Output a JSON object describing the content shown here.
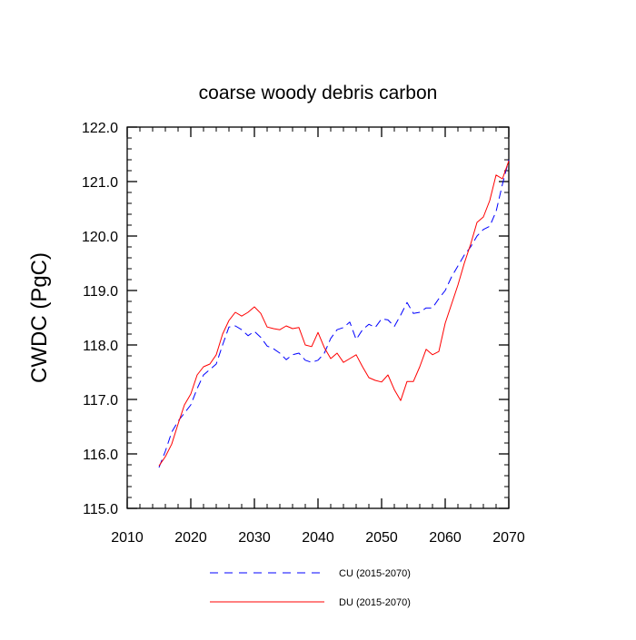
{
  "chart_data": {
    "type": "line",
    "title": "coarse woody debris carbon",
    "xlabel": "",
    "ylabel": "CWDC  (PgC)",
    "xlim": [
      2010,
      2070
    ],
    "ylim": [
      115.0,
      122.0
    ],
    "xticks": [
      "2010",
      "2020",
      "2030",
      "2040",
      "2050",
      "2060",
      "2070"
    ],
    "yticks": [
      "115.0",
      "116.0",
      "117.0",
      "118.0",
      "119.0",
      "120.0",
      "121.0",
      "122.0"
    ],
    "legend_position": "bottom",
    "grid": false,
    "series": [
      {
        "name": "CU (2015-2070)",
        "color": "#0000ff",
        "style": "dashed",
        "x": [
          2015,
          2016,
          2017,
          2018,
          2019,
          2020,
          2021,
          2022,
          2023,
          2024,
          2025,
          2026,
          2027,
          2028,
          2029,
          2030,
          2031,
          2032,
          2033,
          2034,
          2035,
          2036,
          2037,
          2038,
          2039,
          2040,
          2041,
          2042,
          2043,
          2044,
          2045,
          2046,
          2047,
          2048,
          2049,
          2050,
          2051,
          2052,
          2053,
          2054,
          2055,
          2056,
          2057,
          2058,
          2059,
          2060,
          2061,
          2062,
          2063,
          2064,
          2065,
          2066,
          2067,
          2068,
          2069,
          2070
        ],
        "values": [
          115.75,
          116.05,
          116.4,
          116.6,
          116.75,
          116.9,
          117.2,
          117.45,
          117.55,
          117.65,
          118.0,
          118.33,
          118.35,
          118.28,
          118.17,
          118.25,
          118.14,
          117.98,
          117.93,
          117.85,
          117.73,
          117.82,
          117.85,
          117.72,
          117.68,
          117.72,
          117.85,
          118.12,
          118.28,
          118.32,
          118.42,
          118.1,
          118.28,
          118.38,
          118.32,
          118.48,
          118.46,
          118.34,
          118.55,
          118.78,
          118.58,
          118.6,
          118.68,
          118.68,
          118.85,
          119.0,
          119.25,
          119.45,
          119.65,
          119.8,
          120.0,
          120.12,
          120.18,
          120.45,
          120.95,
          121.4
        ]
      },
      {
        "name": "DU (2015-2070)",
        "color": "#ff0000",
        "style": "solid",
        "x": [
          2015,
          2016,
          2017,
          2018,
          2019,
          2020,
          2021,
          2022,
          2023,
          2024,
          2025,
          2026,
          2027,
          2028,
          2029,
          2030,
          2031,
          2032,
          2033,
          2034,
          2035,
          2036,
          2037,
          2038,
          2039,
          2040,
          2041,
          2042,
          2043,
          2044,
          2045,
          2046,
          2047,
          2048,
          2049,
          2050,
          2051,
          2052,
          2053,
          2054,
          2055,
          2056,
          2057,
          2058,
          2059,
          2060,
          2061,
          2062,
          2063,
          2064,
          2065,
          2066,
          2067,
          2068,
          2069,
          2070
        ],
        "values": [
          115.78,
          115.95,
          116.18,
          116.55,
          116.9,
          117.1,
          117.45,
          117.6,
          117.65,
          117.82,
          118.2,
          118.45,
          118.6,
          118.53,
          118.6,
          118.7,
          118.58,
          118.33,
          118.3,
          118.28,
          118.35,
          118.3,
          118.32,
          118.0,
          117.97,
          118.23,
          117.95,
          117.75,
          117.85,
          117.68,
          117.75,
          117.82,
          117.6,
          117.4,
          117.35,
          117.32,
          117.45,
          117.18,
          116.98,
          117.33,
          117.33,
          117.6,
          117.92,
          117.82,
          117.88,
          118.4,
          118.75,
          119.1,
          119.5,
          119.85,
          120.25,
          120.35,
          120.65,
          121.12,
          121.05,
          121.38
        ]
      }
    ]
  }
}
